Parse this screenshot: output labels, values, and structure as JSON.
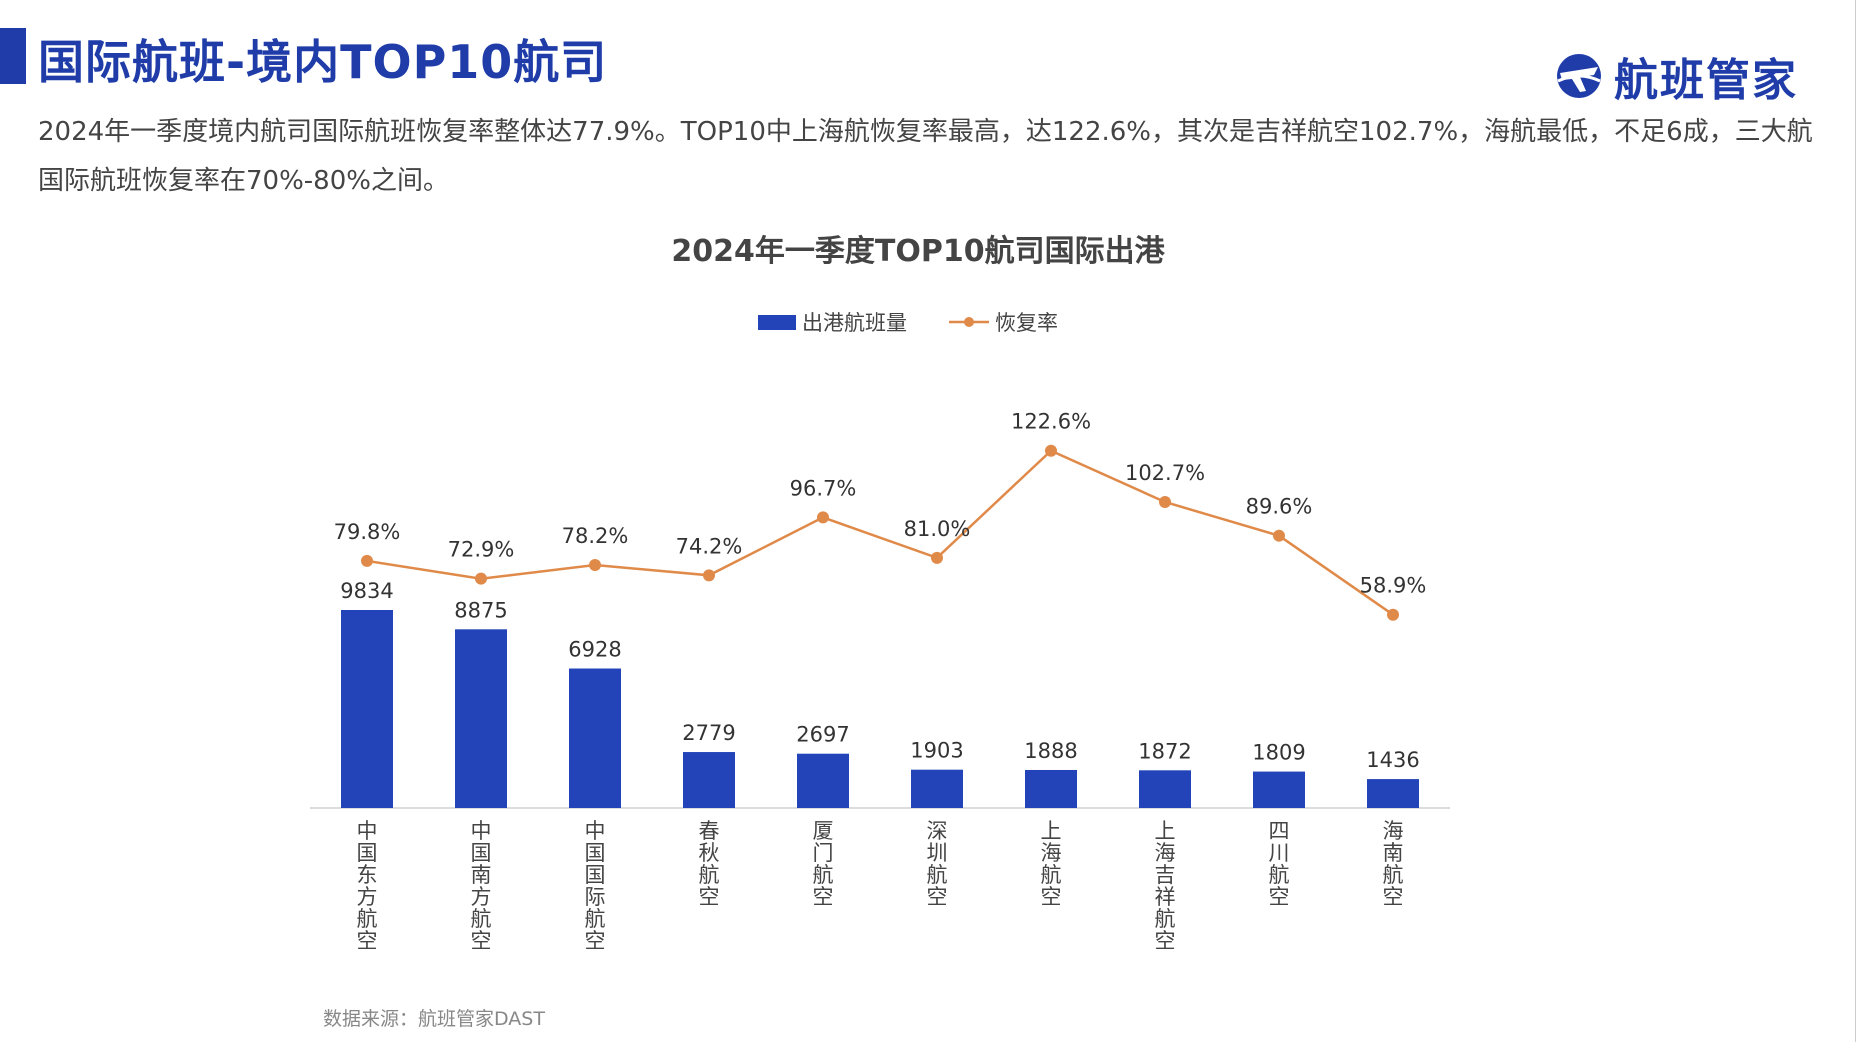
{
  "header": {
    "title": "国际航班-境内TOP10航司",
    "logo_text": "航班管家",
    "logo_icon": "airplane-globe-logo-icon"
  },
  "summary": {
    "text": "2024年一季度境内航司国际航班恢复率整体达77.9%。TOP10中上海航恢复率最高，达122.6%，其次是吉祥航空102.7%，海航最低，不足6成，三大航国际航班恢复率在70%-80%之间。"
  },
  "footer": {
    "source": "数据来源：航班管家DAST"
  },
  "colors": {
    "accent": "#1f3ca8",
    "bar": "#2244b8",
    "line": "#e08a4a"
  },
  "chart_data": {
    "type": "bar",
    "title": "2024年一季度TOP10航司国际出港",
    "categories": [
      "中国东方航空",
      "中国南方航空",
      "中国国际航空",
      "春秋航空",
      "厦门航空",
      "深圳航空",
      "上海航空",
      "上海吉祥航空",
      "四川航空",
      "海南航空"
    ],
    "series": [
      {
        "name": "出港航班量",
        "type": "bar",
        "values": [
          9834,
          8875,
          6928,
          2779,
          2697,
          1903,
          1888,
          1872,
          1809,
          1436
        ],
        "labels": [
          "9834",
          "8875",
          "6928",
          "2779",
          "2697",
          "1903",
          "1888",
          "1872",
          "1809",
          "1436"
        ]
      },
      {
        "name": "恢复率",
        "type": "line",
        "values": [
          79.8,
          72.9,
          78.2,
          74.2,
          96.7,
          81.0,
          122.6,
          102.7,
          89.6,
          58.9
        ],
        "labels": [
          "79.8%",
          "72.9%",
          "78.2%",
          "74.2%",
          "96.7%",
          "81.0%",
          "122.6%",
          "102.7%",
          "89.6%",
          "58.9%"
        ]
      }
    ],
    "legend": "top",
    "grid": false
  }
}
